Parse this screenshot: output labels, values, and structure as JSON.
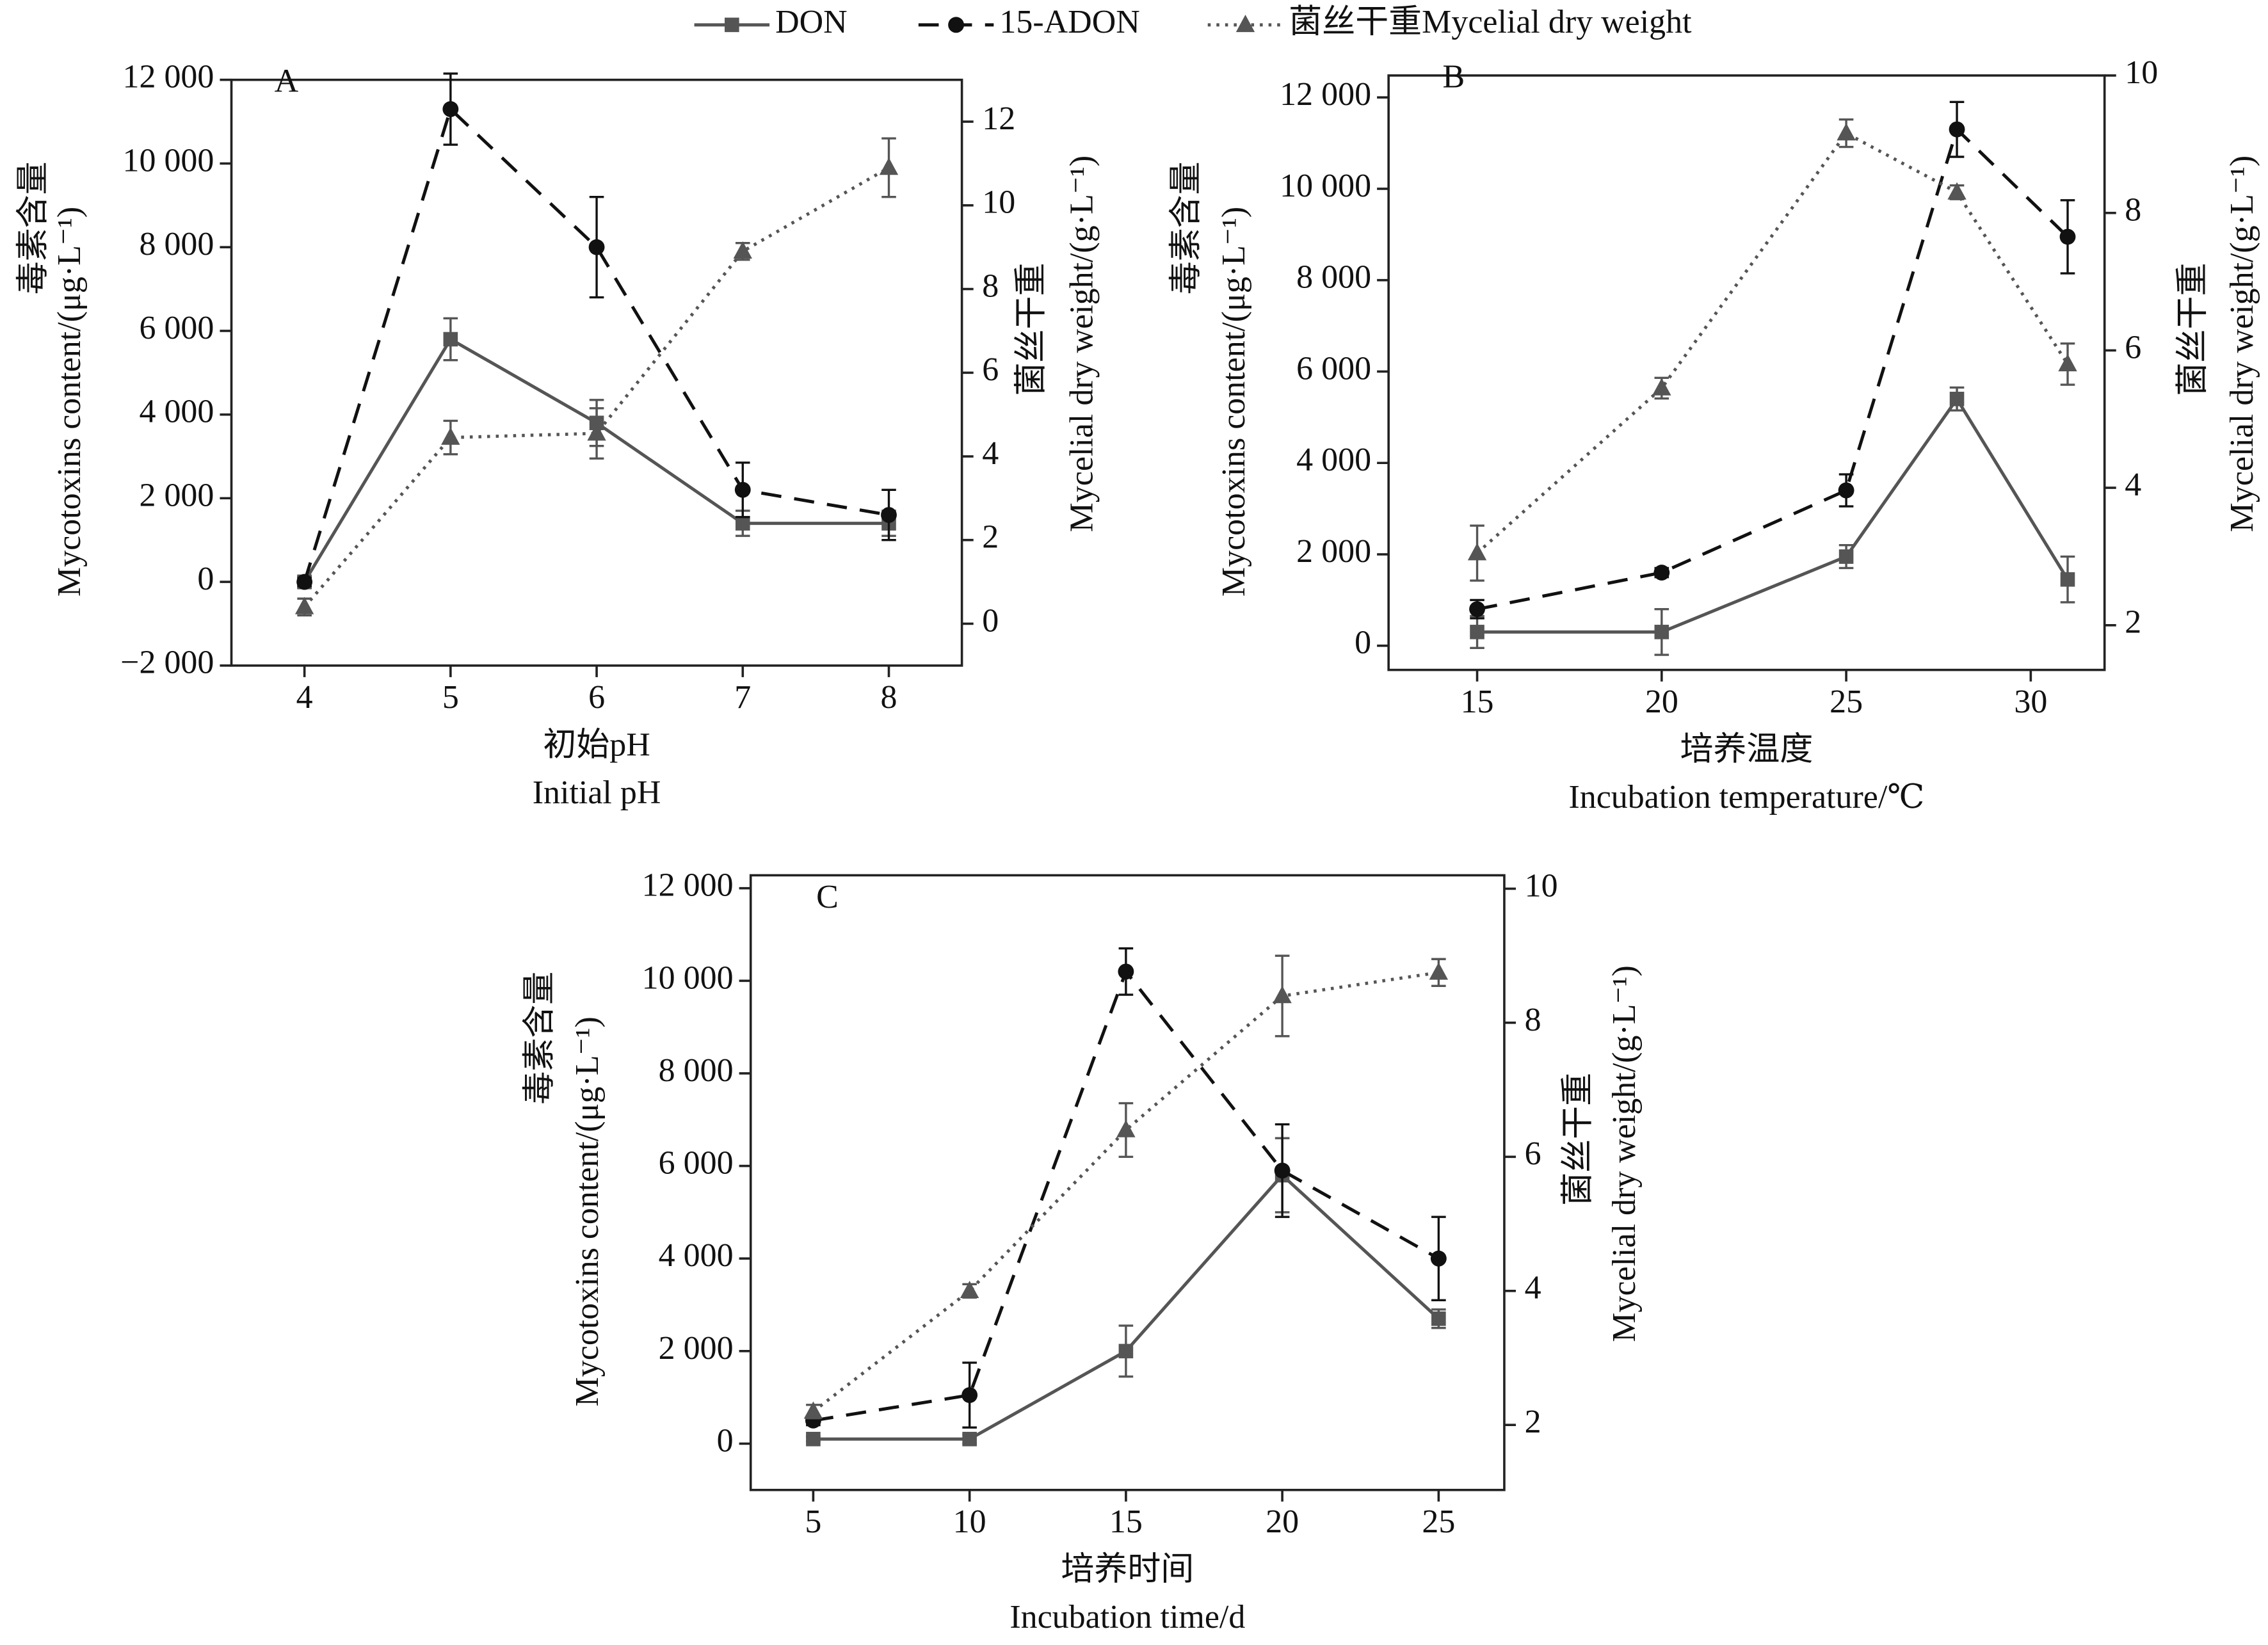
{
  "chart_data": [
    {
      "type": "line",
      "label": "A",
      "xlabel_cn": "初始pH",
      "xlabel": "Initial pH",
      "ylabel_cn": "毒素含量",
      "ylabel": "Mycotoxins content/(μg·L⁻¹)",
      "y2label_cn": "菌丝干重",
      "y2label": "Mycelial dry weight/(g·L⁻¹)",
      "x": [
        4,
        5,
        6,
        7,
        8
      ],
      "xlim": [
        3.5,
        8.5
      ],
      "xticks": [
        4,
        5,
        6,
        7,
        8
      ],
      "ylim": [
        -2000,
        12000
      ],
      "yticks": [
        {
          "value": -2000,
          "label": "−2 000"
        },
        0,
        {
          "value": 2000,
          "label": "2 000"
        },
        {
          "value": 4000,
          "label": "4 000"
        },
        {
          "value": 6000,
          "label": "6 000"
        },
        {
          "value": 8000,
          "label": "8 000"
        },
        {
          "value": 10000,
          "label": "10 000"
        },
        {
          "value": 12000,
          "label": "12 000"
        }
      ],
      "y2lim": [
        -1,
        13
      ],
      "y2ticks": [
        0,
        2,
        4,
        6,
        8,
        10,
        12
      ],
      "series": [
        {
          "name": "DON",
          "color": "#555555",
          "marker": "square",
          "dash": "solid",
          "values": [
            0,
            5800,
            3800,
            1400,
            1400
          ],
          "errors": [
            150,
            500,
            550,
            300,
            300
          ]
        },
        {
          "name": "15-ADON",
          "color": "#111111",
          "marker": "circle",
          "dash": "dashed",
          "values": [
            0,
            11300,
            8000,
            2200,
            1600
          ],
          "errors": [
            100,
            850,
            1200,
            650,
            600
          ]
        },
        {
          "name": "菌丝干重Mycelial dry weight",
          "color": "#555555",
          "marker": "triangle",
          "dash": "dotted",
          "axis": "y2",
          "values": [
            0.4,
            4.45,
            4.55,
            8.9,
            10.9
          ],
          "errors": [
            0.2,
            0.4,
            0.6,
            0.2,
            0.7
          ]
        }
      ]
    },
    {
      "type": "line",
      "label": "B",
      "xlabel_cn": "培养温度",
      "xlabel": "Incubation temperature/℃",
      "ylabel_cn": "毒素含量",
      "ylabel": "Mycotoxins content/(μg·L⁻¹)",
      "y2label_cn": "菌丝干重",
      "y2label": "Mycelial dry weight/(g·L⁻¹)",
      "x": [
        15,
        20,
        25,
        28,
        31
      ],
      "xlim": [
        12.6,
        32
      ],
      "xticks": [
        15,
        20,
        25,
        30
      ],
      "ylim": [
        -530,
        12480
      ],
      "yticks": [
        0,
        {
          "value": 2000,
          "label": "2 000"
        },
        {
          "value": 4000,
          "label": "4 000"
        },
        {
          "value": 6000,
          "label": "6 000"
        },
        {
          "value": 8000,
          "label": "8 000"
        },
        {
          "value": 10000,
          "label": "10 000"
        },
        {
          "value": 12000,
          "label": "12 000"
        }
      ],
      "y2lim": [
        1.35,
        10
      ],
      "y2ticks": [
        2,
        4,
        6,
        8,
        10
      ],
      "series": [
        {
          "color": "#555555",
          "marker": "square",
          "dash": "solid",
          "values": [
            300,
            300,
            1950,
            5400,
            1450
          ],
          "errors": [
            350,
            500,
            250,
            250,
            500
          ]
        },
        {
          "color": "#111111",
          "marker": "circle",
          "dash": "dashed",
          "values": [
            800,
            1600,
            3400,
            11300,
            8950
          ],
          "errors": [
            200,
            100,
            350,
            600,
            800
          ]
        },
        {
          "color": "#555555",
          "marker": "triangle",
          "dash": "dotted",
          "axis": "y2",
          "values": [
            3.05,
            5.45,
            9.16,
            8.3,
            5.8
          ],
          "errors": [
            0.4,
            0.15,
            0.2,
            0.1,
            0.3
          ]
        }
      ]
    },
    {
      "type": "line",
      "label": "C",
      "xlabel_cn": "培养时间",
      "xlabel": "Incubation time/d",
      "ylabel_cn": "毒素含量",
      "ylabel": "Mycotoxins content/(μg·L⁻¹)",
      "y2label_cn": "菌丝干重",
      "y2label": "Mycelial dry weight/(g·L⁻¹)",
      "x": [
        5,
        10,
        15,
        20,
        25
      ],
      "xlim": [
        3,
        27.1
      ],
      "xticks": [
        5,
        10,
        15,
        20,
        25
      ],
      "ylim": [
        -1000,
        12280
      ],
      "yticks": [
        0,
        {
          "value": 2000,
          "label": "2 000"
        },
        {
          "value": 4000,
          "label": "4 000"
        },
        {
          "value": 6000,
          "label": "6 000"
        },
        {
          "value": 8000,
          "label": "8 000"
        },
        {
          "value": 10000,
          "label": "10 000"
        },
        {
          "value": 12000,
          "label": "12 000"
        }
      ],
      "y2lim": [
        1.03,
        10.2
      ],
      "y2ticks": [
        2,
        4,
        6,
        8,
        10
      ],
      "series": [
        {
          "color": "#555555",
          "marker": "square",
          "dash": "solid",
          "values": [
            100,
            100,
            2000,
            5800,
            2700
          ],
          "errors": [
            50,
            100,
            550,
            800,
            200
          ]
        },
        {
          "color": "#111111",
          "marker": "circle",
          "dash": "dashed",
          "values": [
            500,
            1050,
            10200,
            5900,
            4000
          ],
          "errors": [
            100,
            700,
            500,
            1000,
            900
          ]
        },
        {
          "color": "#555555",
          "marker": "triangle",
          "dash": "dotted",
          "axis": "y2",
          "values": [
            2.2,
            4.0,
            6.4,
            8.4,
            8.75
          ],
          "errors": [
            0.1,
            0.1,
            0.4,
            0.6,
            0.2
          ]
        }
      ]
    }
  ]
}
